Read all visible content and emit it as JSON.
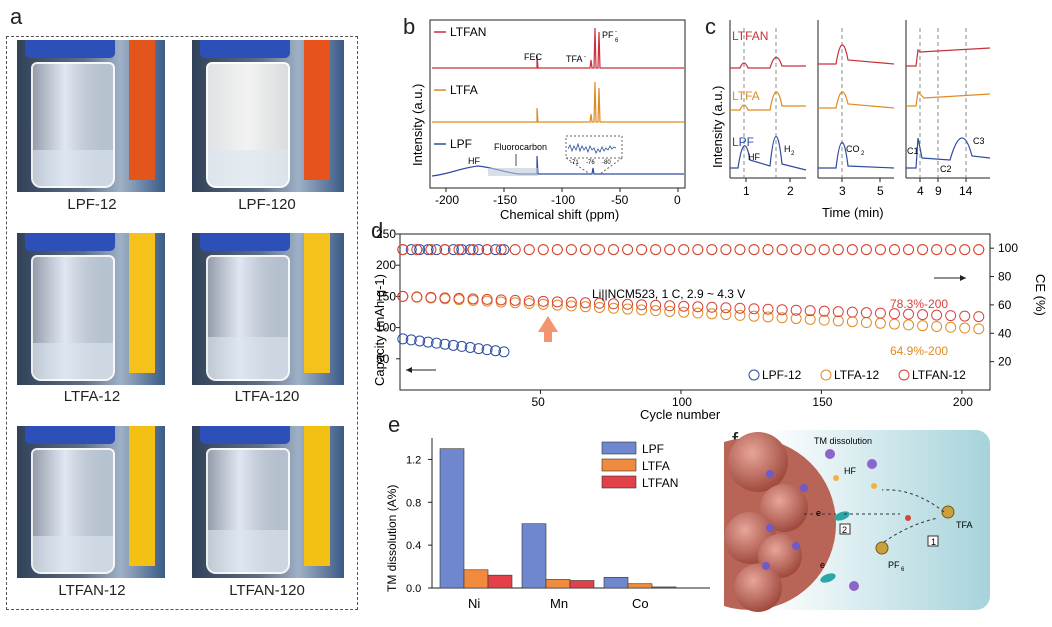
{
  "panels": {
    "a": "a",
    "b": "b",
    "c": "c",
    "d": "d",
    "e": "e",
    "f": "f"
  },
  "photos": [
    {
      "label": "LPF-12",
      "strip_color": "#e2551b",
      "vial": "clear"
    },
    {
      "label": "LPF-120",
      "strip_color": "#e8521c",
      "vial": "frosted"
    },
    {
      "label": "LTFA-12",
      "strip_color": "#f4c21a",
      "vial": "clear"
    },
    {
      "label": "LTFA-120",
      "strip_color": "#f4c21a",
      "vial": "clear"
    },
    {
      "label": "LTFAN-12",
      "strip_color": "#f3c014",
      "vial": "clear"
    },
    {
      "label": "LTFAN-120",
      "strip_color": "#f3c014",
      "vial": "clear"
    }
  ],
  "nmr": {
    "ylabel": "Intensity (a.u.)",
    "xlabel": "Chemical shift (ppm)",
    "xticks": [
      "-200",
      "-150",
      "-100",
      "-50",
      "0"
    ],
    "traces": [
      {
        "name": "LTFAN",
        "color": "#c8303a"
      },
      {
        "name": "LTFA",
        "color": "#e08b22"
      },
      {
        "name": "LPF",
        "color": "#2d4d9e"
      }
    ],
    "annotations": {
      "fec": "FEC",
      "tfa": "TFA",
      "tfa_sup": "-",
      "pf6": "PF",
      "pf6_sub": "6",
      "pf6_sup": "-",
      "hf": "HF",
      "fluorocarbon": "Fluorocarbon"
    },
    "inset_ticks": [
      "-71",
      "-76",
      "-80"
    ]
  },
  "gc": {
    "ylabel": "Intensity (a.u.)",
    "xlabel": "Time (min)",
    "traces": [
      {
        "name": "LTFAN",
        "color": "#c8303a"
      },
      {
        "name": "LTFA",
        "color": "#e08b22"
      },
      {
        "name": "LPF",
        "color": "#2d4d9e"
      }
    ],
    "xticks1": [
      "1",
      "2"
    ],
    "xticks2": [
      "3",
      "5"
    ],
    "xticks3": [
      "4",
      "9",
      "14"
    ],
    "labels": {
      "hf": "HF",
      "h2": "H",
      "h2_sub": "2",
      "co2": "CO",
      "co2_sub": "2",
      "c1": "C1",
      "c2": "C2",
      "c3": "C3"
    }
  },
  "chart_data": [
    {
      "type": "scatter",
      "title": "",
      "xlabel": "Cycle number",
      "ylabel_left": "Capacity (mAh g-1)",
      "ylabel_right": "CE (%)",
      "xlim": [
        0,
        210
      ],
      "ylim_left": [
        0,
        250
      ],
      "ylim_right": [
        0,
        110
      ],
      "xticks": [
        "50",
        "100",
        "150",
        "200"
      ],
      "yticks_left": [
        "50",
        "100",
        "150",
        "200",
        "250"
      ],
      "yticks_right": [
        "20",
        "40",
        "60",
        "80",
        "100"
      ],
      "annotation": "Li||NCM523, 1 C, 2.9 ~ 4.3 V",
      "ann_ltfan": "78.3%-200",
      "ann_ltfa": "64.9%-200",
      "series": [
        {
          "name": "LPF-12",
          "color": "#2d4d9e",
          "capacity_start": 82,
          "capacity_end": 60,
          "cycles": 39,
          "ce": 99
        },
        {
          "name": "LTFA-12",
          "color": "#e08b22",
          "capacity_start": 150,
          "capacity_end": 97,
          "cycles": 210,
          "ce": 99
        },
        {
          "name": "LTFAN-12",
          "color": "#d8423b",
          "capacity_start": 150,
          "capacity_end": 117,
          "cycles": 210,
          "ce": 99
        }
      ]
    },
    {
      "type": "bar",
      "title": "",
      "xlabel": "",
      "ylabel": "TM dissolution (A%)",
      "categories": [
        "Ni",
        "Mn",
        "Co"
      ],
      "ylim": [
        0,
        1.4
      ],
      "yticks": [
        "0.0",
        "0.4",
        "0.8",
        "1.2"
      ],
      "series": [
        {
          "name": "LPF",
          "color": "#6f87cf",
          "values": [
            1.3,
            0.6,
            0.1
          ]
        },
        {
          "name": "LTFA",
          "color": "#f08a3c",
          "values": [
            0.17,
            0.08,
            0.04
          ]
        },
        {
          "name": "LTFAN",
          "color": "#e2414a",
          "values": [
            0.12,
            0.07,
            0.01
          ]
        }
      ]
    }
  ],
  "schematic": {
    "title": "TM dissolution",
    "hf": "HF",
    "e1": "e",
    "e2": "e",
    "tfa": "TFA",
    "pf6": "PF",
    "pf6_sub": "6",
    "step1": "1",
    "step2": "2"
  }
}
